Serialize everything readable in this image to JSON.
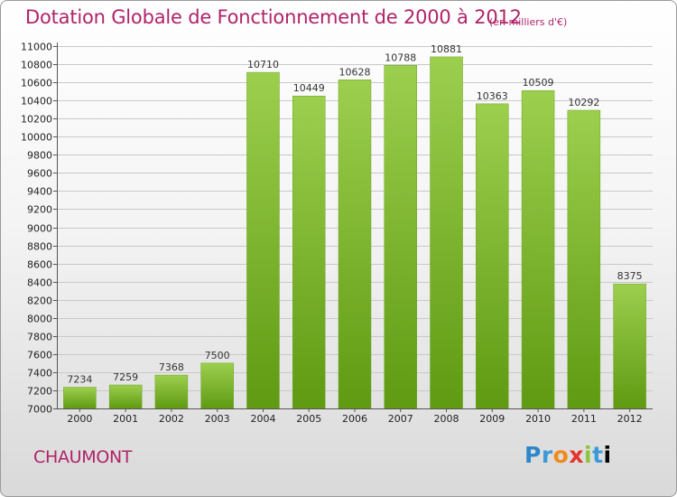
{
  "header": {
    "title": "Dotation Globale de Fonctionnement de 2000 à 2012",
    "unit": "(en milliers d'€)"
  },
  "footer": {
    "commune": "CHAUMONT",
    "logo_letters": [
      "P",
      "r",
      "o",
      "x",
      "i",
      "t",
      "i"
    ]
  },
  "colors": {
    "title": "#b0236a",
    "bar_top": "#9ccf4e",
    "bar_bottom": "#5f9a12",
    "grid": "#c9c9c9"
  },
  "chart_data": {
    "type": "bar",
    "title": "Dotation Globale de Fonctionnement de 2000 à 2012",
    "categories": [
      "2000",
      "2001",
      "2002",
      "2003",
      "2004",
      "2005",
      "2006",
      "2007",
      "2008",
      "2009",
      "2010",
      "2011",
      "2012"
    ],
    "values": [
      7234,
      7259,
      7368,
      7500,
      10710,
      10449,
      10628,
      10788,
      10881,
      10363,
      10509,
      10292,
      8375
    ],
    "xlabel": "",
    "ylabel": "",
    "ylim": [
      7000,
      11000
    ],
    "ytick_step": 200,
    "grid": true,
    "legend": "none"
  }
}
